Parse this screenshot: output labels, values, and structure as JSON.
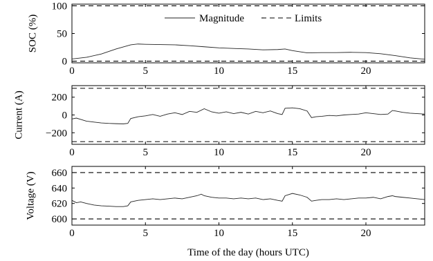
{
  "chart_data": [
    {
      "type": "line",
      "id": "soc",
      "ylabel": "SOC (%)",
      "xlabel": "",
      "xlim": [
        0,
        24
      ],
      "ylim": [
        -3,
        103
      ],
      "xticks": [
        0,
        5,
        10,
        15,
        20
      ],
      "yticks": [
        0,
        50,
        100
      ],
      "grid": false,
      "legend": {
        "placement": "top-center",
        "entries": [
          {
            "label": "Magnitude",
            "style": "solid"
          },
          {
            "label": "Limits",
            "style": "dashed"
          }
        ]
      },
      "limits": [
        0,
        100
      ],
      "series": [
        {
          "name": "Magnitude",
          "x": [
            0,
            1,
            2,
            3,
            4,
            4.5,
            5,
            6,
            7,
            8,
            9,
            10,
            11,
            12,
            13,
            14,
            14.5,
            15,
            16,
            17,
            18,
            19,
            20,
            21,
            22,
            23,
            24
          ],
          "y": [
            4,
            7,
            13,
            22,
            29.5,
            31,
            30.5,
            30,
            29.5,
            28,
            26,
            24,
            23,
            22,
            20.5,
            21,
            22,
            19,
            15,
            15.5,
            15.5,
            16,
            15.5,
            13.5,
            10,
            6,
            3.5
          ]
        }
      ]
    },
    {
      "type": "line",
      "id": "current",
      "ylabel": "Current (A)",
      "xlabel": "",
      "xlim": [
        0,
        24
      ],
      "ylim": [
        -330,
        330
      ],
      "xticks": [
        0,
        5,
        10,
        15,
        20
      ],
      "yticks": [
        -200,
        0,
        200
      ],
      "grid": false,
      "limits": [
        -300,
        300
      ],
      "series": [
        {
          "name": "Magnitude",
          "x": [
            0,
            0.3,
            0.6,
            1,
            1.5,
            2,
            2.5,
            3,
            3.5,
            3.8,
            4,
            4.5,
            5,
            5.5,
            6,
            6.5,
            7,
            7.5,
            8,
            8.5,
            9,
            9.5,
            10,
            10.5,
            11,
            11.5,
            12,
            12.5,
            13,
            13.5,
            14,
            14.3,
            14.5,
            15,
            15.5,
            16,
            16.3,
            16.6,
            17,
            17.5,
            18,
            18.5,
            19,
            19.5,
            20,
            20.5,
            21,
            21.5,
            21.8,
            22,
            22.5,
            23,
            23.5,
            24
          ],
          "y": [
            -45,
            -35,
            -50,
            -70,
            -80,
            -90,
            -95,
            -98,
            -100,
            -95,
            -40,
            -20,
            -10,
            5,
            -15,
            10,
            25,
            5,
            40,
            30,
            70,
            35,
            20,
            35,
            15,
            30,
            10,
            40,
            25,
            45,
            15,
            5,
            75,
            80,
            70,
            45,
            -30,
            -20,
            -15,
            -5,
            -10,
            0,
            5,
            10,
            25,
            15,
            5,
            10,
            50,
            45,
            30,
            20,
            15,
            10
          ]
        }
      ]
    },
    {
      "type": "line",
      "id": "voltage",
      "ylabel": "Voltage (V)",
      "xlabel": "Time of the day (hours UTC)",
      "xlim": [
        0,
        24
      ],
      "ylim": [
        592,
        668
      ],
      "xticks": [
        0,
        5,
        10,
        15,
        20
      ],
      "yticks": [
        600,
        620,
        640,
        660
      ],
      "grid": false,
      "limits": [
        600,
        660
      ],
      "series": [
        {
          "name": "Magnitude",
          "x": [
            0,
            0.3,
            0.6,
            1,
            1.5,
            2,
            2.5,
            3,
            3.5,
            3.8,
            4,
            4.5,
            5,
            5.5,
            6,
            6.5,
            7,
            7.5,
            8,
            8.5,
            8.8,
            9,
            9.5,
            10,
            10.5,
            11,
            11.5,
            12,
            12.5,
            13,
            13.5,
            14,
            14.3,
            14.5,
            15,
            15.5,
            16,
            16.3,
            16.6,
            17,
            17.5,
            18,
            18.5,
            19,
            19.5,
            20,
            20.5,
            21,
            21.5,
            21.8,
            22,
            22.5,
            23,
            23.5,
            24
          ],
          "y": [
            624,
            621,
            622,
            620,
            618,
            617,
            616.5,
            616,
            616,
            617,
            622,
            624,
            625,
            626,
            625,
            626,
            627,
            626,
            628,
            630,
            632,
            630,
            628,
            627,
            627,
            626,
            627,
            626,
            627,
            625,
            626,
            624,
            623,
            630,
            633,
            631,
            628,
            623,
            624,
            625,
            625,
            626,
            625,
            626,
            627,
            627,
            628,
            626,
            629,
            630,
            629,
            628,
            627,
            626,
            625
          ]
        }
      ]
    }
  ]
}
